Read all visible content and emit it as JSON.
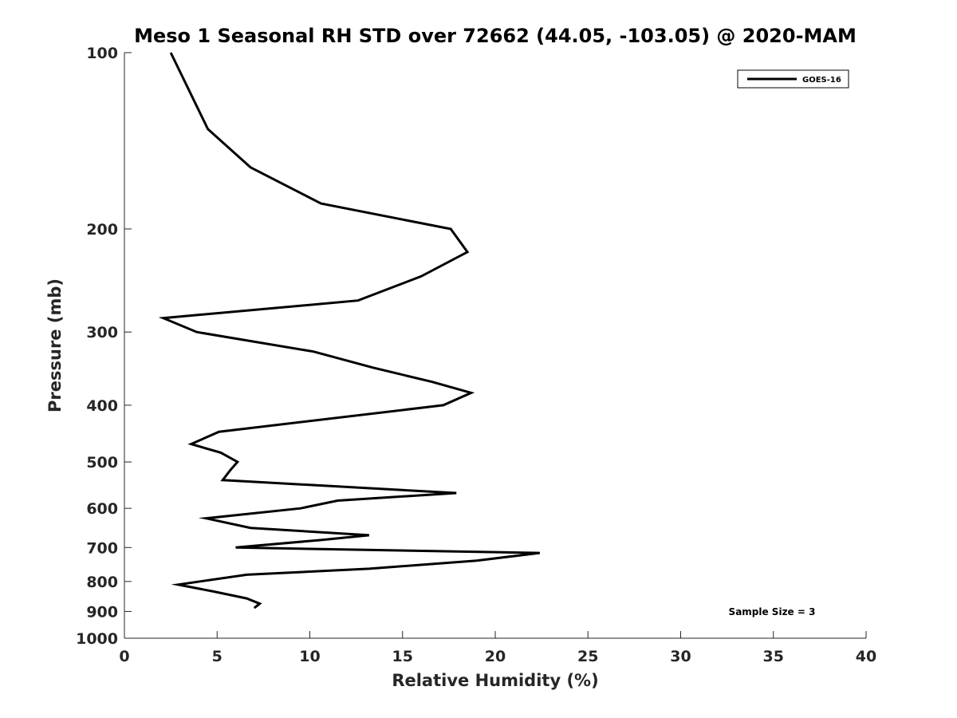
{
  "chart_data": {
    "type": "line",
    "title": "Meso 1 Seasonal RH STD over 72662 (44.05, -103.05) @ 2020-MAM",
    "xlabel": "Relative Humidity (%)",
    "ylabel": "Pressure (mb)",
    "xlim": [
      0,
      40
    ],
    "ylim": [
      100,
      1000
    ],
    "y_scale": "log",
    "y_reversed": true,
    "x_ticks": [
      "0",
      "5",
      "10",
      "15",
      "20",
      "25",
      "30",
      "35",
      "40"
    ],
    "y_ticks": [
      "100",
      "200",
      "300",
      "400",
      "500",
      "600",
      "700",
      "800",
      "900",
      "1000"
    ],
    "grid": false,
    "legend_position": "top-right",
    "series": [
      {
        "name": "GOES-16",
        "color": "#000000",
        "points": [
          {
            "x": 2.5,
            "y": 100
          },
          {
            "x": 4.5,
            "y": 135
          },
          {
            "x": 6.8,
            "y": 157
          },
          {
            "x": 10.6,
            "y": 181
          },
          {
            "x": 17.6,
            "y": 200
          },
          {
            "x": 18.5,
            "y": 219
          },
          {
            "x": 16.0,
            "y": 241
          },
          {
            "x": 12.6,
            "y": 265
          },
          {
            "x": 2.1,
            "y": 284
          },
          {
            "x": 3.9,
            "y": 300
          },
          {
            "x": 10.2,
            "y": 324
          },
          {
            "x": 13.4,
            "y": 345
          },
          {
            "x": 16.6,
            "y": 365
          },
          {
            "x": 18.7,
            "y": 381
          },
          {
            "x": 17.2,
            "y": 400
          },
          {
            "x": 5.1,
            "y": 444
          },
          {
            "x": 3.6,
            "y": 466
          },
          {
            "x": 5.2,
            "y": 482
          },
          {
            "x": 6.1,
            "y": 500
          },
          {
            "x": 5.7,
            "y": 517
          },
          {
            "x": 5.3,
            "y": 537
          },
          {
            "x": 17.9,
            "y": 565
          },
          {
            "x": 11.5,
            "y": 582
          },
          {
            "x": 9.5,
            "y": 600
          },
          {
            "x": 4.4,
            "y": 624
          },
          {
            "x": 6.8,
            "y": 648
          },
          {
            "x": 13.2,
            "y": 667
          },
          {
            "x": 10.5,
            "y": 680
          },
          {
            "x": 6.0,
            "y": 700
          },
          {
            "x": 22.4,
            "y": 715
          },
          {
            "x": 19.0,
            "y": 737
          },
          {
            "x": 13.2,
            "y": 761
          },
          {
            "x": 6.6,
            "y": 779
          },
          {
            "x": 2.9,
            "y": 810
          },
          {
            "x": 4.8,
            "y": 832
          },
          {
            "x": 6.6,
            "y": 855
          },
          {
            "x": 7.3,
            "y": 873
          },
          {
            "x": 7.0,
            "y": 888
          }
        ]
      }
    ],
    "annotations": [
      "Sample Size = 3"
    ]
  }
}
